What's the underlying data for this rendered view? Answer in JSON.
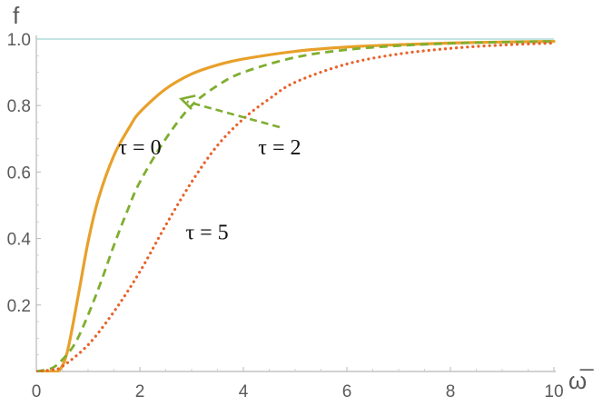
{
  "chart_data": {
    "type": "line",
    "title": "",
    "xlabel": "ω̅",
    "ylabel": "f",
    "xlim": [
      0,
      10
    ],
    "ylim": [
      0,
      1.0
    ],
    "x_ticks": [
      "0",
      "2",
      "4",
      "6",
      "8",
      "10"
    ],
    "y_ticks": [
      "0.2",
      "0.4",
      "0.6",
      "0.8",
      "1.0"
    ],
    "grid": false,
    "reference_line": {
      "y": 1.0,
      "color": "#9fd3d0"
    },
    "series": [
      {
        "label_text": "τ = 0",
        "color": "#e8a02a",
        "style": "solid",
        "x": [
          0,
          0.3,
          0.45,
          0.6,
          0.8,
          1.0,
          1.2,
          1.5,
          1.8,
          2.0,
          2.5,
          3.0,
          3.5,
          4.0,
          5.0,
          6.0,
          7.0,
          8.0,
          9.0,
          10.0
        ],
        "y": [
          0,
          0,
          0.005,
          0.06,
          0.22,
          0.39,
          0.52,
          0.65,
          0.735,
          0.78,
          0.85,
          0.895,
          0.922,
          0.94,
          0.963,
          0.976,
          0.983,
          0.988,
          0.991,
          0.993
        ]
      },
      {
        "label_text": "τ = 2",
        "color": "#7fae2f",
        "style": "dashed",
        "x": [
          0,
          0.3,
          0.5,
          0.75,
          1.0,
          1.25,
          1.5,
          1.75,
          2.0,
          2.5,
          3.0,
          3.5,
          4.0,
          5.0,
          6.0,
          7.0,
          8.0,
          9.0,
          10.0
        ],
        "y": [
          0,
          0.01,
          0.035,
          0.085,
          0.17,
          0.27,
          0.38,
          0.48,
          0.57,
          0.7,
          0.8,
          0.86,
          0.9,
          0.945,
          0.968,
          0.98,
          0.987,
          0.991,
          0.993
        ]
      },
      {
        "label_text": "τ = 5",
        "color": "#e8622a",
        "style": "dotted",
        "x": [
          0,
          0.3,
          0.5,
          1.0,
          1.5,
          2.0,
          2.5,
          3.0,
          3.5,
          4.0,
          4.5,
          5.0,
          6.0,
          7.0,
          8.0,
          9.0,
          10.0
        ],
        "y": [
          0,
          0.005,
          0.015,
          0.08,
          0.18,
          0.3,
          0.44,
          0.57,
          0.68,
          0.76,
          0.82,
          0.87,
          0.925,
          0.955,
          0.972,
          0.982,
          0.988
        ]
      }
    ],
    "annotations": [
      {
        "text": "τ = 0",
        "at": [
          2.0,
          0.675
        ]
      },
      {
        "text": "τ = 2",
        "at": [
          4.7,
          0.675
        ]
      },
      {
        "text": "τ = 5",
        "at": [
          3.3,
          0.42
        ]
      }
    ],
    "arrow": {
      "from": [
        4.7,
        0.735
      ],
      "to": [
        2.8,
        0.82
      ],
      "color": "#7fae2f"
    }
  }
}
